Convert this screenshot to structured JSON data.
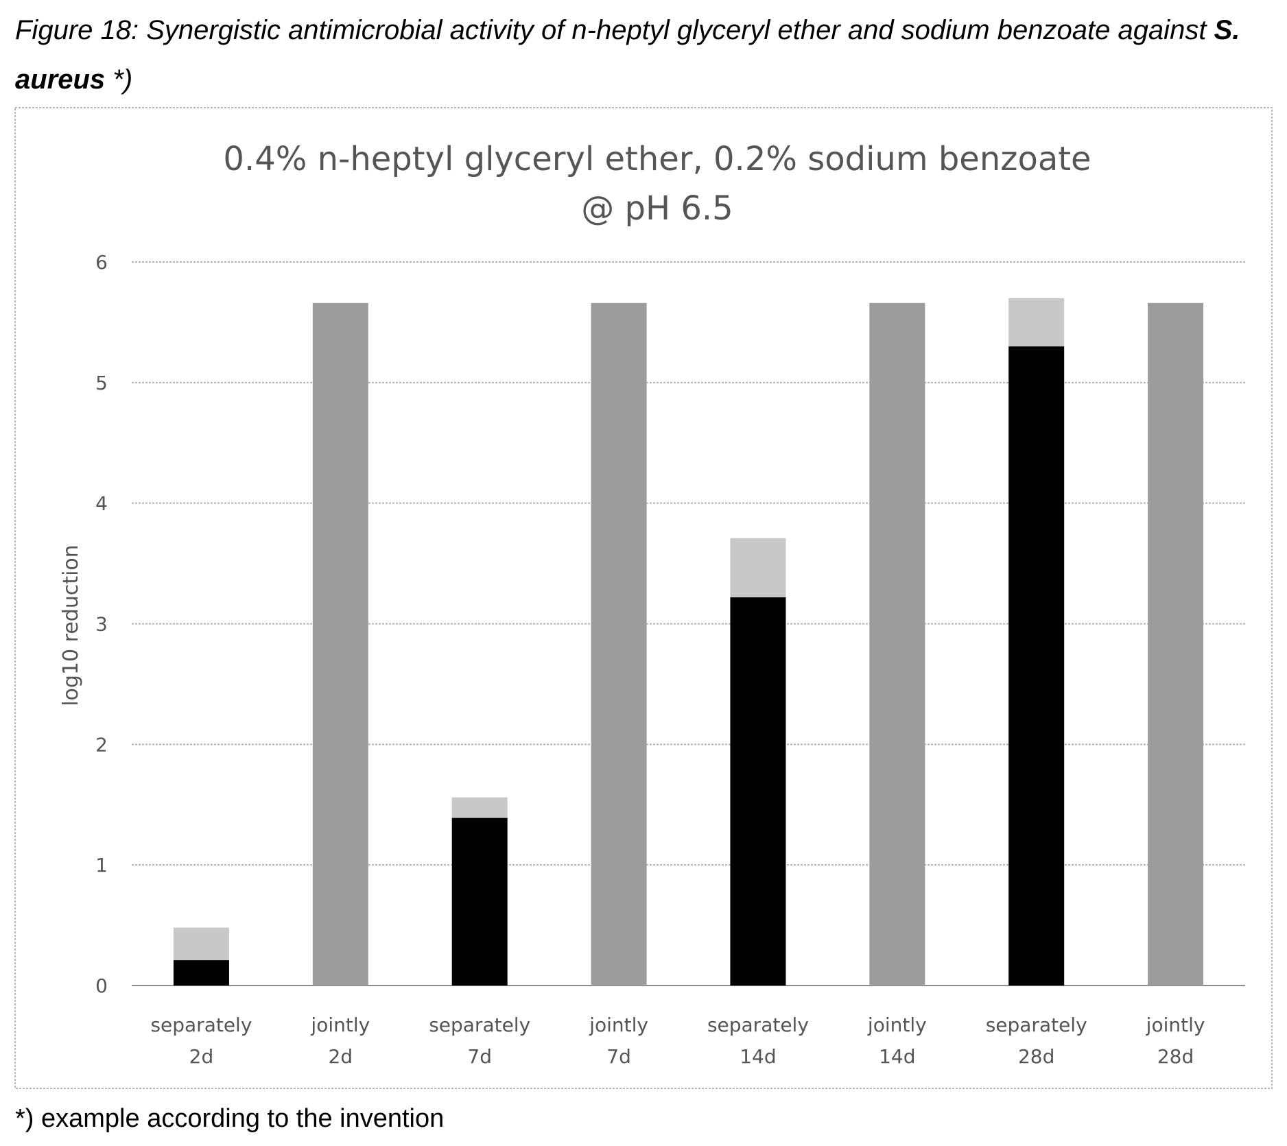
{
  "caption": {
    "prefix": "Figure 18: Synergistic antimicrobial activity of n-heptyl glyceryl ether and sodium benzoate against",
    "organism": "S. aureus",
    "suffix": " *)"
  },
  "footnote": "*) example according to the invention",
  "chart_data": {
    "type": "bar",
    "stacked": true,
    "title_lines": [
      "0.4% n-heptyl glyceryl ether, 0.2% sodium benzoate",
      "@ pH 6.5"
    ],
    "ylabel": "log10 reduction",
    "xlabel": "",
    "ylim": [
      0,
      6
    ],
    "yticks": [
      0,
      1,
      2,
      3,
      4,
      5,
      6
    ],
    "grid": true,
    "categories": [
      [
        "separately",
        "2d"
      ],
      [
        "jointly",
        "2d"
      ],
      [
        "separately",
        "7d"
      ],
      [
        "jointly",
        "7d"
      ],
      [
        "separately",
        "14d"
      ],
      [
        "jointly",
        "14d"
      ],
      [
        "separately",
        "28d"
      ],
      [
        "jointly",
        "28d"
      ]
    ],
    "series": [
      {
        "color": "#000000",
        "values": [
          0.21,
          0,
          1.39,
          0,
          3.22,
          0,
          5.3,
          0
        ]
      },
      {
        "color": "#c8c8c8",
        "values": [
          0.27,
          0,
          0.17,
          0,
          0.49,
          0,
          0.4,
          0
        ]
      },
      {
        "color": "#9c9c9c",
        "values": [
          0,
          5.66,
          0,
          5.66,
          0,
          5.66,
          0,
          5.66
        ]
      }
    ]
  }
}
